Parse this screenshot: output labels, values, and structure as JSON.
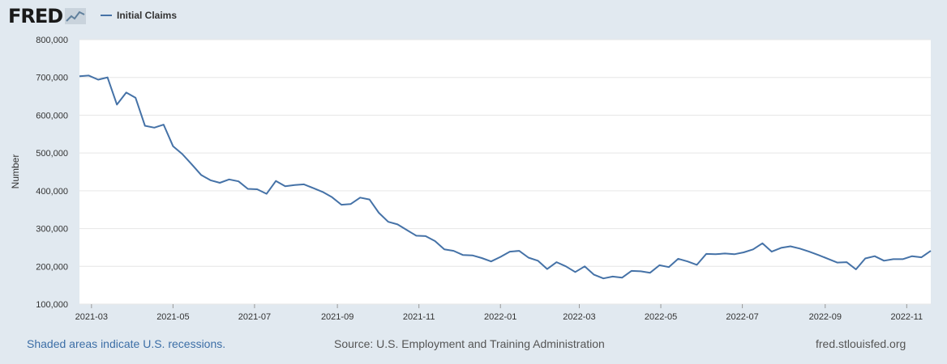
{
  "header": {
    "logo_text": "FRED",
    "logo_icon": "chart-line-icon",
    "legend_label": "Initial Claims",
    "series_color": "#4572a7"
  },
  "chart_data": {
    "type": "line",
    "ylabel": "Number",
    "ylim": [
      100000,
      800000
    ],
    "xlim": [
      "2021-02-20",
      "2022-11-19"
    ],
    "y_ticks": [
      100000,
      200000,
      300000,
      400000,
      500000,
      600000,
      700000,
      800000
    ],
    "y_tick_labels": [
      "100,000",
      "200,000",
      "300,000",
      "400,000",
      "500,000",
      "600,000",
      "700,000",
      "800,000"
    ],
    "x_ticks": [
      "2021-03-01",
      "2021-05-01",
      "2021-07-01",
      "2021-09-01",
      "2021-11-01",
      "2022-01-01",
      "2022-03-01",
      "2022-05-01",
      "2022-07-01",
      "2022-09-01",
      "2022-11-01"
    ],
    "x_tick_labels": [
      "2021-03",
      "2021-05",
      "2021-07",
      "2021-09",
      "2021-11",
      "2022-01",
      "2022-03",
      "2022-05",
      "2022-07",
      "2022-09",
      "2022-11"
    ],
    "grid": true,
    "legend": "top-left",
    "series": [
      {
        "name": "Initial Claims",
        "start": "2021-02-20",
        "frequency": "weekly",
        "values": [
          703000,
          705000,
          694000,
          700000,
          628000,
          660000,
          646000,
          572000,
          567000,
          575000,
          518000,
          497000,
          470000,
          442000,
          428000,
          421000,
          430000,
          425000,
          405000,
          404000,
          392000,
          426000,
          412000,
          415000,
          417000,
          407000,
          397000,
          383000,
          363000,
          365000,
          382000,
          377000,
          342000,
          318000,
          311000,
          296000,
          281000,
          280000,
          267000,
          245000,
          241000,
          230000,
          229000,
          222000,
          213000,
          225000,
          239000,
          241000,
          223000,
          215000,
          193000,
          211000,
          200000,
          185000,
          200000,
          178000,
          168000,
          173000,
          170000,
          188000,
          187000,
          183000,
          203000,
          198000,
          220000,
          213000,
          204000,
          233000,
          232000,
          234000,
          232000,
          237000,
          245000,
          261000,
          239000,
          249000,
          253000,
          247000,
          239000,
          230000,
          220000,
          210000,
          211000,
          192000,
          221000,
          227000,
          215000,
          219000,
          219000,
          227000,
          224000,
          241000
        ]
      }
    ]
  },
  "footer": {
    "recession_note": "Shaded areas indicate U.S. recessions.",
    "source": "Source: U.S. Employment and Training Administration",
    "site": "fred.stlouisfed.org"
  }
}
